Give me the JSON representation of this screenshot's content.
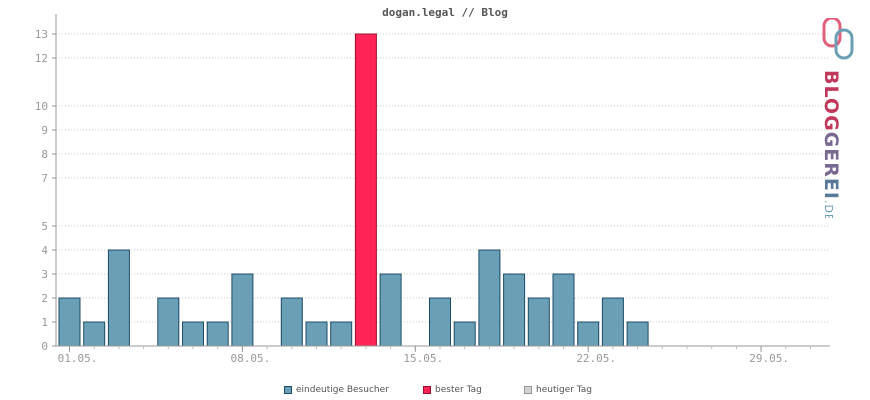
{
  "chart_data": {
    "type": "bar",
    "title": "dogan.legal // Blog",
    "xlabel": "",
    "ylabel": "",
    "ylim": [
      0,
      13.5
    ],
    "yticks": [
      0,
      1,
      2,
      3,
      4,
      5,
      7,
      8,
      9,
      10,
      12,
      13
    ],
    "y_scale_note": "irregular",
    "x_tick_labels": [
      "01.05.",
      "08.05.",
      "15.05.",
      "22.05.",
      "29.05."
    ],
    "categories": [
      "01.05.",
      "02.05.",
      "03.05.",
      "04.05.",
      "05.05.",
      "06.05.",
      "07.05.",
      "08.05.",
      "09.05.",
      "10.05.",
      "11.05.",
      "12.05.",
      "13.05.",
      "14.05.",
      "15.05.",
      "16.05.",
      "17.05.",
      "18.05.",
      "19.05.",
      "20.05.",
      "21.05.",
      "22.05.",
      "23.05.",
      "24.05.",
      "25.05.",
      "26.05.",
      "27.05.",
      "28.05.",
      "29.05.",
      "30.05.",
      "31.05."
    ],
    "series": [
      {
        "name": "eindeutige Besucher",
        "color": "#6a9fb5",
        "values": [
          2,
          1,
          4,
          0,
          2,
          1,
          1,
          3,
          0,
          2,
          1,
          1,
          13,
          3,
          0,
          2,
          1,
          4,
          3,
          2,
          3,
          1,
          2,
          1,
          0,
          0,
          0,
          0,
          0,
          0,
          0
        ]
      }
    ],
    "best_day_index": 12,
    "best_day_color": "#ff2356",
    "grid": true,
    "legend_position": "bottom"
  },
  "legend": [
    {
      "label": "eindeutige Besucher",
      "color": "#6a9fb5"
    },
    {
      "label": "bester Tag",
      "color": "#ff2356"
    },
    {
      "label": "heutiger Tag",
      "color": "#d3d3d3"
    }
  ],
  "logo": {
    "text": "BLOGGEREI",
    "suffix": ".DE"
  }
}
